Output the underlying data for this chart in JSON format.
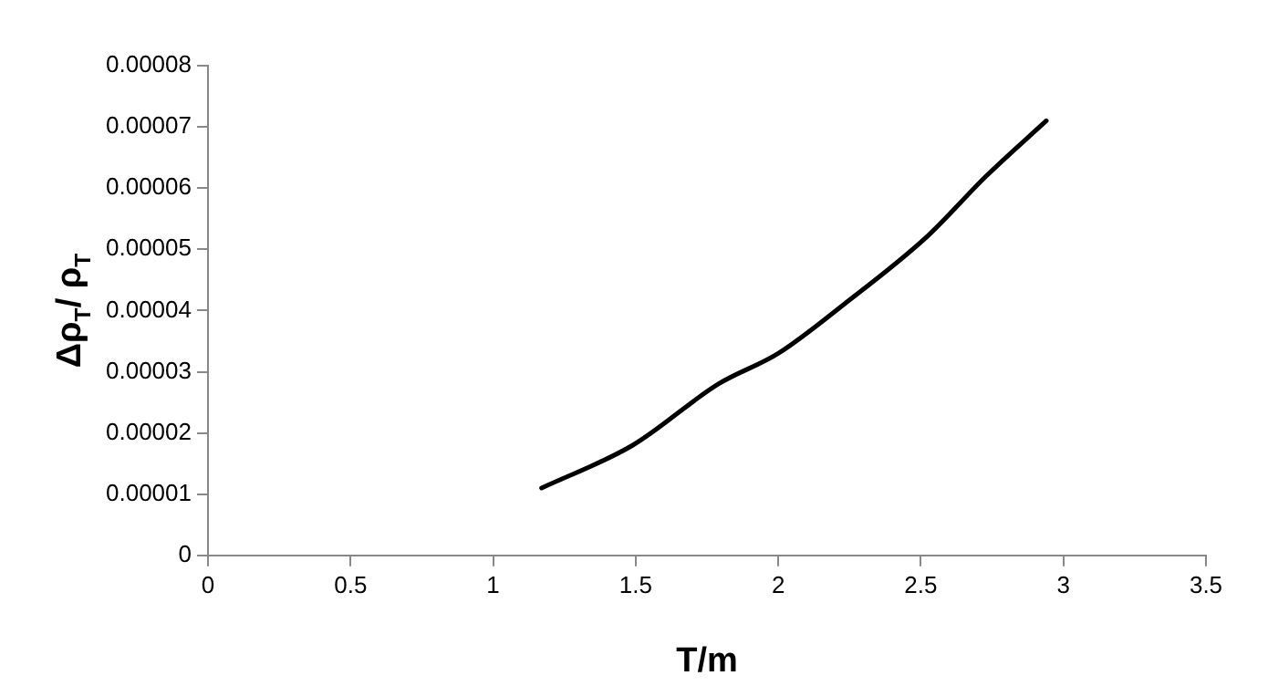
{
  "chart_data": {
    "type": "line",
    "xlabel": "T/m",
    "ylabel": "Δρ$_{T}$/ ρ$_{T}$",
    "x": [
      1.17,
      1.49,
      1.79,
      2,
      2.23,
      2.52,
      2.73,
      2.94
    ],
    "series": [
      {
        "color": "#000000",
        "values": [
          1.1e-05,
          1.8e-05,
          2.8e-05,
          3.3e-05,
          4.1e-05,
          5.2e-05,
          6.2e-05,
          7.1e-05
        ]
      }
    ],
    "xlim": [
      0,
      3.5
    ],
    "xticks": [
      0,
      0.5,
      1,
      1.5,
      2,
      2.5,
      3,
      3.5
    ],
    "ylim": [
      0,
      8e-05
    ],
    "yticks": [
      0,
      {
        "value": 1e-05,
        "label": "0.00001"
      },
      {
        "value": 2e-05,
        "label": "0.00002"
      },
      {
        "value": 3e-05,
        "label": "0.00003"
      },
      {
        "value": 4e-05,
        "label": "0.00004"
      },
      {
        "value": 5e-05,
        "label": "0.00005"
      },
      {
        "value": 6e-05,
        "label": "0.00006"
      },
      {
        "value": 7e-05,
        "label": "0.00007"
      },
      {
        "value": 8e-05,
        "label": "0.00008"
      }
    ],
    "grid": false,
    "legend": false,
    "marker": "none",
    "line_style": "solid"
  }
}
